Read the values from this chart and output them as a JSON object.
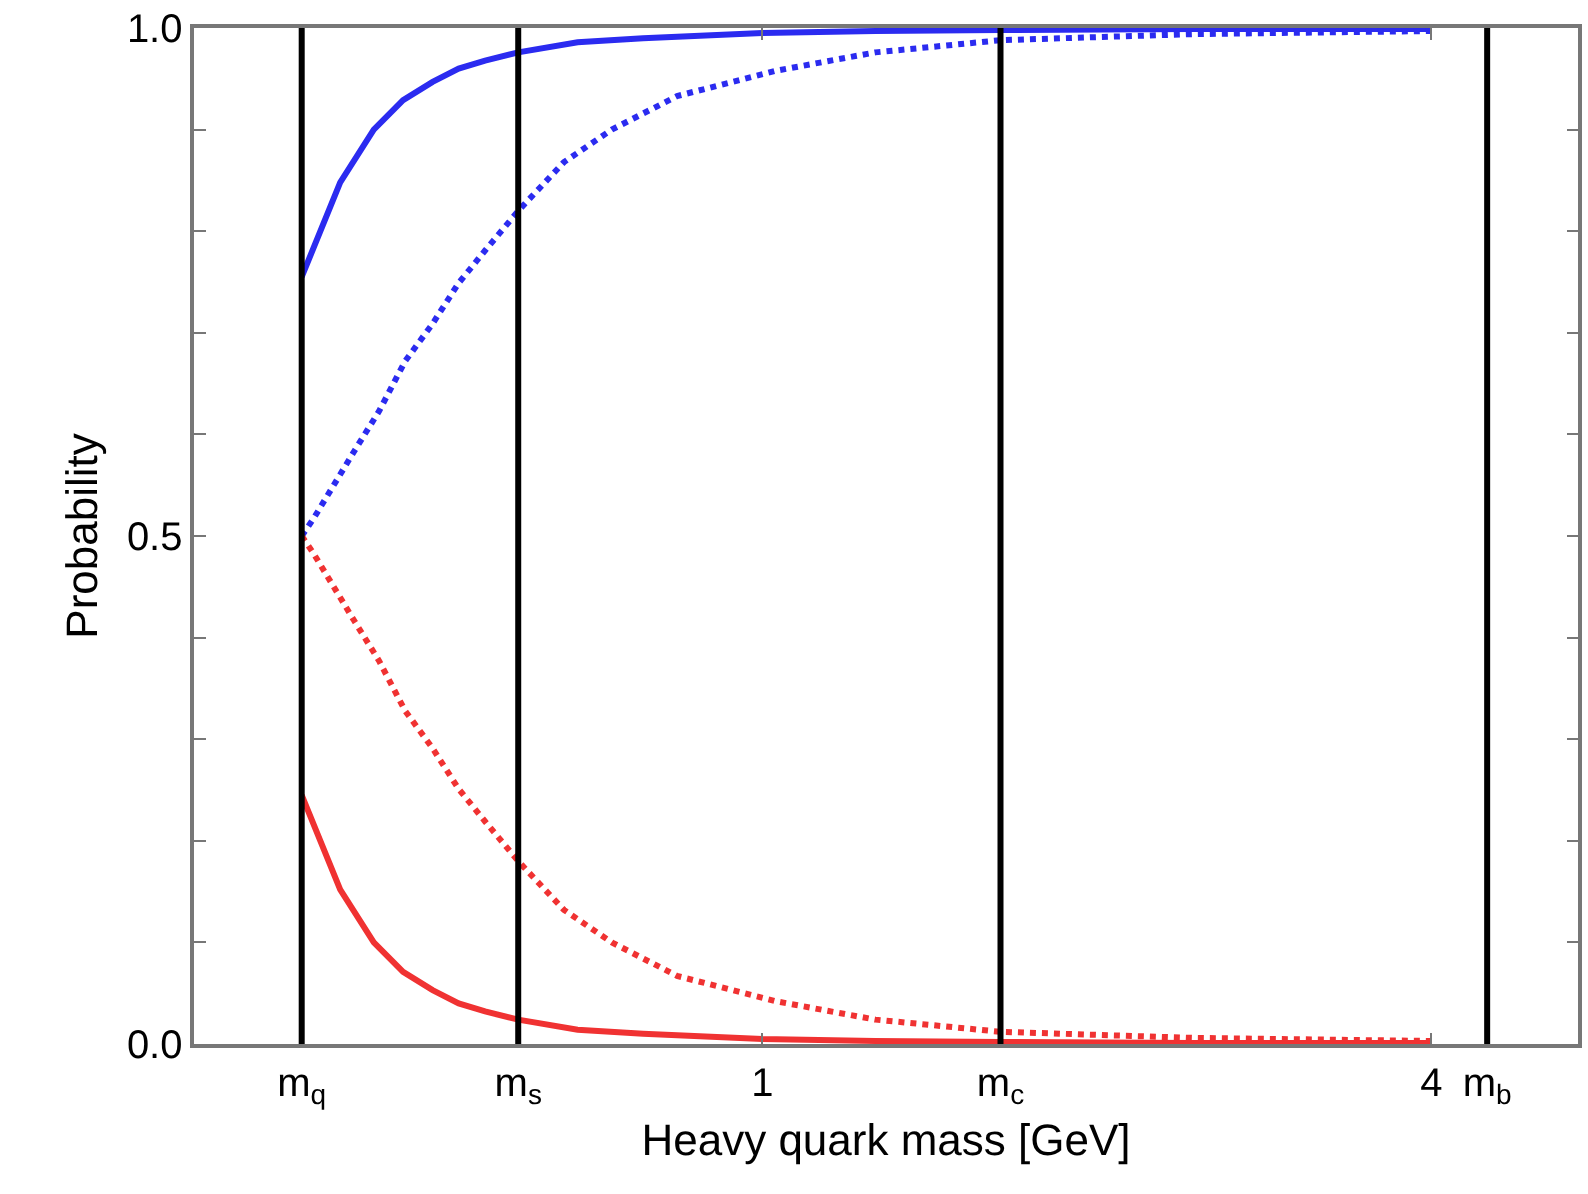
{
  "chart_data": {
    "type": "line",
    "xlabel": "Heavy quark mass [GeV]",
    "ylabel": "Probability",
    "log": "x",
    "xlim": [
      0.308,
      5.42
    ],
    "xticks": [
      {
        "value": 0.385,
        "label": "m$_{q}$"
      },
      {
        "value": 0.603,
        "label": "m$_{s}$"
      },
      1,
      {
        "value": 1.638,
        "label": "m$_{c}$"
      },
      4,
      {
        "value": 4.49,
        "label": "m$_{b}$"
      }
    ],
    "ylim": [
      0,
      1
    ],
    "yticks": [
      {
        "value": 0,
        "label": "0.0"
      },
      {
        "value": 0.1,
        "label": null
      },
      {
        "value": 0.2,
        "label": null
      },
      {
        "value": 0.3,
        "label": null
      },
      {
        "value": 0.4,
        "label": null
      },
      {
        "value": 0.5,
        "label": "0.5"
      },
      {
        "value": 0.6,
        "label": null
      },
      {
        "value": 0.7,
        "label": null
      },
      {
        "value": 0.8,
        "label": null
      },
      {
        "value": 0.9,
        "label": null
      },
      {
        "value": 1,
        "label": "1.0"
      }
    ],
    "grid": false,
    "marker": "none",
    "series": [
      {
        "color": "#2b2bf0",
        "line_style": "solid",
        "x": [
          0.385,
          0.417,
          0.447,
          0.475,
          0.505,
          0.533,
          0.563,
          0.603,
          0.682,
          0.781,
          1,
          1.264,
          1.638,
          2.44,
          3.99
        ],
        "values": [
          0.755,
          0.848,
          0.9,
          0.929,
          0.947,
          0.96,
          0.968,
          0.976,
          0.986,
          0.99,
          0.995,
          0.997,
          0.998,
          0.999,
          0.999
        ]
      },
      {
        "color": "#2b2bf0",
        "line_style": "dotted",
        "x": [
          0.385,
          0.395,
          0.429,
          0.452,
          0.477,
          0.505,
          0.533,
          0.563,
          0.603,
          0.663,
          0.732,
          0.838,
          1.029,
          1.264,
          1.638,
          2.44,
          3.99
        ],
        "values": [
          0.5,
          0.518,
          0.583,
          0.623,
          0.672,
          0.709,
          0.749,
          0.781,
          0.82,
          0.868,
          0.9,
          0.933,
          0.958,
          0.976,
          0.988,
          0.994,
          0.997
        ]
      },
      {
        "color": "#f03232",
        "line_style": "dotted",
        "x": [
          0.385,
          0.395,
          0.429,
          0.452,
          0.477,
          0.505,
          0.533,
          0.563,
          0.603,
          0.663,
          0.732,
          0.838,
          1.029,
          1.264,
          1.638,
          2.44,
          3.99
        ],
        "values": [
          0.5,
          0.482,
          0.417,
          0.377,
          0.328,
          0.291,
          0.251,
          0.219,
          0.18,
          0.132,
          0.1,
          0.067,
          0.042,
          0.024,
          0.012,
          0.006,
          0.003
        ]
      },
      {
        "color": "#f03232",
        "line_style": "solid",
        "x": [
          0.385,
          0.417,
          0.447,
          0.475,
          0.505,
          0.533,
          0.563,
          0.603,
          0.682,
          0.781,
          1,
          1.264,
          1.638,
          2.44,
          3.99
        ],
        "values": [
          0.245,
          0.152,
          0.1,
          0.071,
          0.053,
          0.04,
          0.032,
          0.024,
          0.014,
          0.01,
          0.005,
          0.003,
          0.002,
          0.001,
          0.001
        ]
      }
    ],
    "ref_lines": [
      {
        "axis": "x",
        "value": 0.385,
        "color": "#000000"
      },
      {
        "axis": "x",
        "value": 0.603,
        "color": "#000000"
      },
      {
        "axis": "x",
        "value": 1.638,
        "color": "#000000"
      },
      {
        "axis": "x",
        "value": 4.49,
        "color": "#000000"
      }
    ]
  }
}
